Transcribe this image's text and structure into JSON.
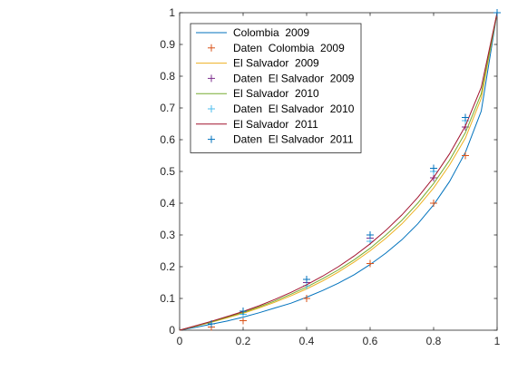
{
  "chart_data": {
    "type": "line",
    "title": "",
    "xlabel": "",
    "ylabel": "",
    "xlim": [
      0,
      1
    ],
    "ylim": [
      0,
      1
    ],
    "xticks": [
      "0",
      "0.2",
      "0.4",
      "0.6",
      "0.8",
      "1"
    ],
    "yticks": [
      "0",
      "0.1",
      "0.2",
      "0.3",
      "0.4",
      "0.5",
      "0.6",
      "0.7",
      "0.8",
      "0.9",
      "1"
    ],
    "grid": false,
    "legend_position": "top-left",
    "series": [
      {
        "name": "Colombia  2009",
        "kind": "line",
        "color": "#0072bd",
        "x": [
          0,
          0.05,
          0.1,
          0.15,
          0.2,
          0.25,
          0.3,
          0.35,
          0.4,
          0.45,
          0.5,
          0.55,
          0.6,
          0.65,
          0.7,
          0.75,
          0.8,
          0.85,
          0.9,
          0.95,
          1
        ],
        "y": [
          0,
          0.009,
          0.019,
          0.029,
          0.041,
          0.055,
          0.07,
          0.085,
          0.104,
          0.125,
          0.148,
          0.175,
          0.207,
          0.243,
          0.285,
          0.335,
          0.395,
          0.468,
          0.56,
          0.69,
          1
        ]
      },
      {
        "name": "Daten  Colombia  2009",
        "kind": "marker",
        "color": "#d95319",
        "x": [
          0.1,
          0.2,
          0.4,
          0.6,
          0.8,
          0.9
        ],
        "y": [
          0.01,
          0.03,
          0.1,
          0.21,
          0.4,
          0.55
        ]
      },
      {
        "name": "El Salvador  2009",
        "kind": "line",
        "color": "#edb120",
        "x": [
          0,
          0.05,
          0.1,
          0.15,
          0.2,
          0.25,
          0.3,
          0.35,
          0.4,
          0.45,
          0.5,
          0.55,
          0.6,
          0.65,
          0.7,
          0.75,
          0.8,
          0.85,
          0.9,
          0.95,
          1
        ],
        "y": [
          0,
          0.012,
          0.025,
          0.039,
          0.053,
          0.07,
          0.088,
          0.108,
          0.13,
          0.155,
          0.183,
          0.215,
          0.25,
          0.29,
          0.335,
          0.388,
          0.448,
          0.52,
          0.605,
          0.73,
          1
        ]
      },
      {
        "name": "Daten  El Salvador  2009",
        "kind": "marker",
        "color": "#7e2f8e",
        "x": [
          0.1,
          0.2,
          0.4,
          0.6,
          0.8,
          0.9
        ],
        "y": [
          0.02,
          0.05,
          0.15,
          0.29,
          0.48,
          0.64
        ]
      },
      {
        "name": "El Salvador  2010",
        "kind": "line",
        "color": "#77ac30",
        "x": [
          0,
          0.05,
          0.1,
          0.15,
          0.2,
          0.25,
          0.3,
          0.35,
          0.4,
          0.45,
          0.5,
          0.55,
          0.6,
          0.65,
          0.7,
          0.75,
          0.8,
          0.85,
          0.9,
          0.95,
          1
        ],
        "y": [
          0,
          0.013,
          0.026,
          0.041,
          0.056,
          0.073,
          0.092,
          0.113,
          0.136,
          0.162,
          0.19,
          0.222,
          0.258,
          0.3,
          0.346,
          0.4,
          0.462,
          0.535,
          0.622,
          0.745,
          1
        ]
      },
      {
        "name": "Daten  El Salvador  2010",
        "kind": "marker",
        "color": "#4dbeee",
        "x": [
          0.1,
          0.2,
          0.4,
          0.6,
          0.8,
          0.9
        ],
        "y": [
          0.02,
          0.05,
          0.14,
          0.28,
          0.5,
          0.66
        ]
      },
      {
        "name": "El Salvador  2011",
        "kind": "line",
        "color": "#a2142f",
        "x": [
          0,
          0.05,
          0.1,
          0.15,
          0.2,
          0.25,
          0.3,
          0.35,
          0.4,
          0.45,
          0.5,
          0.55,
          0.6,
          0.65,
          0.7,
          0.75,
          0.8,
          0.85,
          0.9,
          0.95,
          1
        ],
        "y": [
          0,
          0.014,
          0.028,
          0.043,
          0.059,
          0.077,
          0.097,
          0.119,
          0.143,
          0.17,
          0.2,
          0.234,
          0.272,
          0.315,
          0.363,
          0.418,
          0.481,
          0.555,
          0.643,
          0.765,
          1
        ]
      },
      {
        "name": "Daten  El Salvador  2011",
        "kind": "marker",
        "color": "#0072bd",
        "x": [
          0.1,
          0.2,
          0.4,
          0.6,
          0.8,
          0.9,
          1
        ],
        "y": [
          0.02,
          0.06,
          0.16,
          0.3,
          0.51,
          0.67,
          1
        ]
      }
    ]
  }
}
